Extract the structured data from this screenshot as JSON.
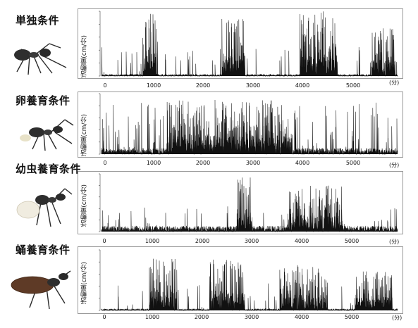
{
  "figure": {
    "x_unit": "(分)",
    "y_label": "活動量(cm/分)",
    "x_ticks": [
      "0",
      "1000",
      "2000",
      "3000",
      "4000",
      "5000"
    ]
  },
  "chart_data": [
    {
      "type": "line",
      "title": "単独条件",
      "ylabel": "活動量(cm/分)",
      "xlabel": "(分)",
      "xlim": [
        0,
        5900
      ],
      "ylim": [
        0,
        100
      ],
      "x_ticks": [
        0,
        1000,
        2000,
        3000,
        4000,
        5000
      ],
      "bursts": [
        {
          "start": 820,
          "end": 1120,
          "peak": 100
        },
        {
          "start": 2400,
          "end": 2860,
          "peak": 90
        },
        {
          "start": 3950,
          "end": 4700,
          "peak": 100
        },
        {
          "start": 5380,
          "end": 5850,
          "peak": 75
        }
      ]
    },
    {
      "type": "line",
      "title": "卵養育条件",
      "ylabel": "活動量(cm/分)",
      "xlabel": "(分)",
      "xlim": [
        0,
        5900
      ],
      "ylim": [
        0,
        100
      ],
      "x_ticks": [
        0,
        1000,
        2000,
        3000,
        4000,
        5000
      ],
      "bursts": [
        {
          "start": 1300,
          "end": 3800,
          "peak": 90
        }
      ]
    },
    {
      "type": "line",
      "title": "幼虫養育条件",
      "ylabel": "活動量(cm/分)",
      "xlabel": "(分)",
      "xlim": [
        0,
        5900
      ],
      "ylim": [
        0,
        100
      ],
      "x_ticks": [
        0,
        1000,
        2000,
        3000,
        4000,
        5000
      ],
      "bursts": [
        {
          "start": 2700,
          "end": 3000,
          "peak": 100
        },
        {
          "start": 3700,
          "end": 4800,
          "peak": 80
        }
      ]
    },
    {
      "type": "line",
      "title": "蛹養育条件",
      "ylabel": "活動量(cm/分)",
      "xlabel": "(分)",
      "xlim": [
        0,
        5900
      ],
      "ylim": [
        0,
        100
      ],
      "x_ticks": [
        0,
        1000,
        2000,
        3000,
        4000,
        5000
      ],
      "bursts": [
        {
          "start": 950,
          "end": 1500,
          "peak": 90
        },
        {
          "start": 2150,
          "end": 2850,
          "peak": 85
        },
        {
          "start": 3550,
          "end": 4500,
          "peak": 75
        },
        {
          "start": 5050,
          "end": 5800,
          "peak": 65
        }
      ]
    }
  ]
}
